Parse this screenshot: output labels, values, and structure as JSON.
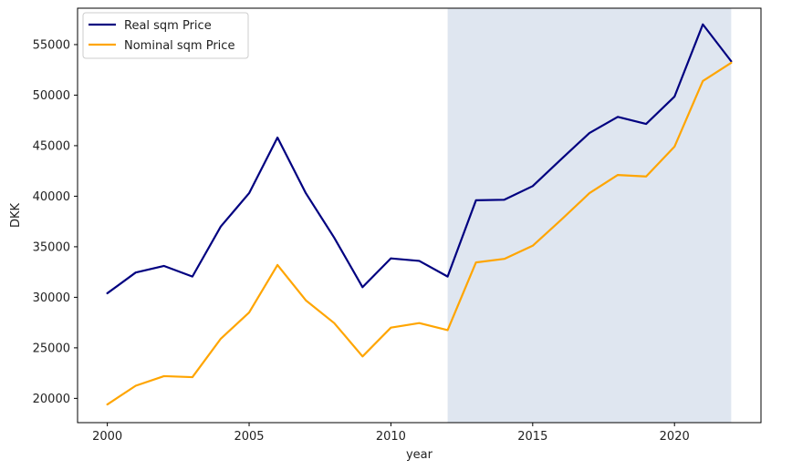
{
  "chart_data": {
    "type": "line",
    "title": "",
    "xlabel": "year",
    "ylabel": "DKK",
    "xlim": [
      1998.95,
      2023.05
    ],
    "ylim": [
      17600,
      58600
    ],
    "x_ticks": [
      2000,
      2005,
      2010,
      2015,
      2020
    ],
    "y_ticks": [
      20000,
      25000,
      30000,
      35000,
      40000,
      45000,
      50000,
      55000
    ],
    "grid": false,
    "legend_position": "upper left",
    "shaded_span": {
      "x_start": 2012,
      "x_end": 2022,
      "color": "#dfe6f0"
    },
    "x": [
      2000,
      2001,
      2002,
      2003,
      2004,
      2005,
      2006,
      2007,
      2008,
      2009,
      2010,
      2011,
      2012,
      2013,
      2014,
      2015,
      2016,
      2017,
      2018,
      2019,
      2020,
      2021,
      2022
    ],
    "series": [
      {
        "name": "Real sqm Price",
        "color": "#000080",
        "values": [
          30400,
          32450,
          33100,
          32050,
          37000,
          40300,
          45800,
          40300,
          35900,
          31000,
          33850,
          33600,
          32050,
          39600,
          39650,
          41000,
          43650,
          46250,
          47850,
          47150,
          49850,
          57000,
          53350
        ]
      },
      {
        "name": "Nominal sqm Price",
        "color": "#FFA500",
        "values": [
          19400,
          21250,
          22200,
          22100,
          25900,
          28500,
          33200,
          29700,
          27450,
          24150,
          27000,
          27450,
          26750,
          33450,
          33800,
          35100,
          37650,
          40300,
          42100,
          41950,
          44900,
          51400,
          53200
        ]
      }
    ]
  }
}
